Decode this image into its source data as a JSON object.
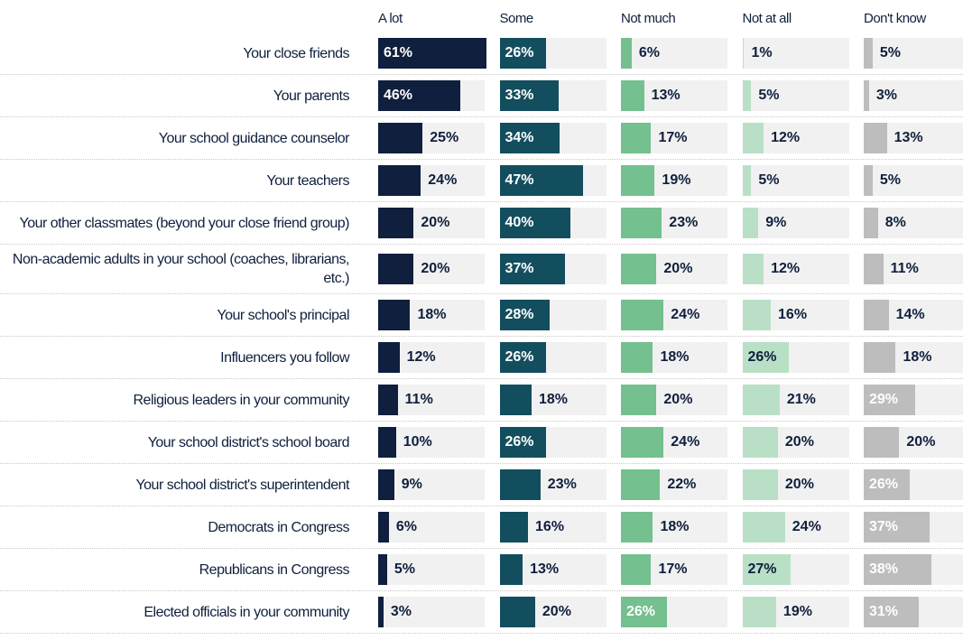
{
  "chart_data": {
    "type": "bar",
    "categories": [
      "Your close friends",
      "Your parents",
      "Your school guidance counselor",
      "Your teachers",
      "Your other classmates (beyond your close friend group)",
      "Non-academic adults in your school (coaches, librarians, etc.)",
      "Your school's principal",
      "Influencers you follow",
      "Religious leaders in your community",
      "Your school district's school board",
      "Your school district's superintendent",
      "Democrats in Congress",
      "Republicans in Congress",
      "Elected officials in your community"
    ],
    "series": [
      {
        "name": "A lot",
        "color": "#0f1f3d",
        "values": [
          61,
          46,
          25,
          24,
          20,
          20,
          18,
          12,
          11,
          10,
          9,
          6,
          5,
          3
        ],
        "value_labels": [
          "61%",
          "46%",
          "25%",
          "24%",
          "20%",
          "20%",
          "18%",
          "12%",
          "11%",
          "10%",
          "9%",
          "6%",
          "5%",
          "3%"
        ]
      },
      {
        "name": "Some",
        "color": "#134e5e",
        "values": [
          26,
          33,
          34,
          47,
          40,
          37,
          28,
          26,
          18,
          26,
          23,
          16,
          13,
          20
        ],
        "value_labels": [
          "26%",
          "33%",
          "34%",
          "47%",
          "40%",
          "37%",
          "28%",
          "26%",
          "18%",
          "26%",
          "23%",
          "16%",
          "13%",
          "20%"
        ]
      },
      {
        "name": "Not much",
        "color": "#74c08e",
        "values": [
          6,
          13,
          17,
          19,
          23,
          20,
          24,
          18,
          20,
          24,
          22,
          18,
          17,
          26
        ],
        "value_labels": [
          "6%",
          "13%",
          "17%",
          "19%",
          "23%",
          "20%",
          "24%",
          "18%",
          "20%",
          "24%",
          "22%",
          "18%",
          "17%",
          "26%"
        ]
      },
      {
        "name": "Not at all",
        "color": "#b9e0c6",
        "values": [
          1,
          5,
          12,
          5,
          9,
          12,
          16,
          26,
          21,
          20,
          20,
          24,
          27,
          19
        ],
        "value_labels": [
          "1%",
          "5%",
          "12%",
          "5%",
          "9%",
          "12%",
          "16%",
          "26%",
          "21%",
          "20%",
          "20%",
          "24%",
          "27%",
          "19%"
        ]
      },
      {
        "name": "Don't know",
        "color": "#bdbdbd",
        "values": [
          5,
          3,
          13,
          5,
          8,
          11,
          14,
          18,
          29,
          20,
          26,
          37,
          38,
          31
        ],
        "value_labels": [
          "5%",
          "3%",
          "13%",
          "5%",
          "8%",
          "11%",
          "14%",
          "18%",
          "29%",
          "20%",
          "26%",
          "37%",
          "38%",
          "31%"
        ]
      }
    ]
  }
}
